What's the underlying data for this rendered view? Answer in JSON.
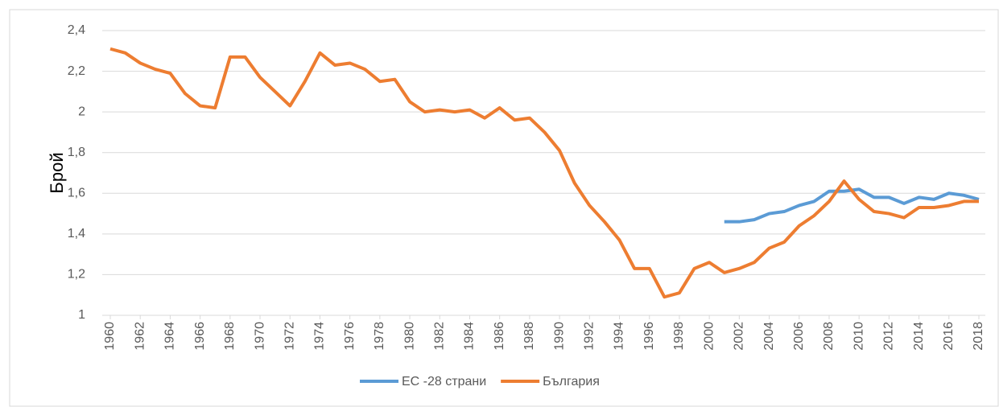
{
  "chart_data": {
    "type": "line",
    "y_label": "Брой",
    "x": [
      1960,
      1961,
      1962,
      1963,
      1964,
      1965,
      1966,
      1967,
      1968,
      1969,
      1970,
      1971,
      1972,
      1973,
      1974,
      1975,
      1976,
      1977,
      1978,
      1979,
      1980,
      1981,
      1982,
      1983,
      1984,
      1985,
      1986,
      1987,
      1988,
      1989,
      1990,
      1991,
      1992,
      1993,
      1994,
      1995,
      1996,
      1997,
      1998,
      1999,
      2000,
      2001,
      2002,
      2003,
      2004,
      2005,
      2006,
      2007,
      2008,
      2009,
      2010,
      2011,
      2012,
      2013,
      2014,
      2015,
      2016,
      2017,
      2018
    ],
    "xlim": [
      1960,
      2018
    ],
    "xticks": [
      1960,
      1962,
      1964,
      1966,
      1968,
      1970,
      1972,
      1974,
      1976,
      1978,
      1980,
      1982,
      1984,
      1986,
      1988,
      1990,
      1992,
      1994,
      1996,
      1998,
      2000,
      2002,
      2004,
      2006,
      2008,
      2010,
      2012,
      2014,
      2016,
      2018
    ],
    "ylim": [
      1,
      2.4
    ],
    "yticks": [
      1,
      {
        "value": 1.2,
        "label": "1,2"
      },
      {
        "value": 1.4,
        "label": "1,4"
      },
      {
        "value": 1.6,
        "label": "1,6"
      },
      {
        "value": 1.8,
        "label": "1,8"
      },
      2,
      {
        "value": 2.2,
        "label": "2,2"
      },
      {
        "value": 2.4,
        "label": "2,4"
      }
    ],
    "grid": true,
    "legend": "bottom",
    "series": [
      {
        "name": "ЕС -28 страни",
        "color": "#5b9bd5",
        "values": [
          null,
          null,
          null,
          null,
          null,
          null,
          null,
          null,
          null,
          null,
          null,
          null,
          null,
          null,
          null,
          null,
          null,
          null,
          null,
          null,
          null,
          null,
          null,
          null,
          null,
          null,
          null,
          null,
          null,
          null,
          null,
          null,
          null,
          null,
          null,
          null,
          null,
          null,
          null,
          null,
          null,
          1.46,
          1.46,
          1.47,
          1.5,
          1.51,
          1.54,
          1.56,
          1.61,
          1.61,
          1.62,
          1.58,
          1.58,
          1.55,
          1.58,
          1.57,
          1.6,
          1.59,
          1.57
        ]
      },
      {
        "name": "България",
        "color": "#ed7d31",
        "values": [
          2.31,
          2.29,
          2.24,
          2.21,
          2.19,
          2.09,
          2.03,
          2.02,
          2.27,
          2.27,
          2.17,
          2.1,
          2.03,
          2.15,
          2.29,
          2.23,
          2.24,
          2.21,
          2.15,
          2.16,
          2.05,
          2.0,
          2.01,
          2.0,
          2.01,
          1.97,
          2.02,
          1.96,
          1.97,
          1.9,
          1.81,
          1.65,
          1.54,
          1.46,
          1.37,
          1.23,
          1.23,
          1.09,
          1.11,
          1.23,
          1.26,
          1.21,
          1.23,
          1.26,
          1.33,
          1.36,
          1.44,
          1.49,
          1.56,
          1.66,
          1.57,
          1.51,
          1.5,
          1.48,
          1.53,
          1.53,
          1.54,
          1.56,
          1.56
        ]
      }
    ]
  }
}
